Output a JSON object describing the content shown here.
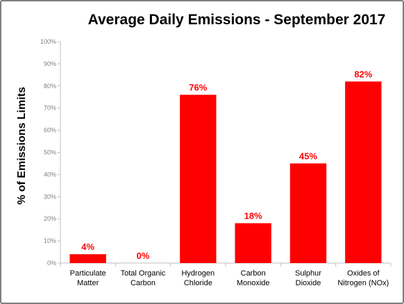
{
  "chart_data": {
    "type": "bar",
    "title": "Average Daily Emissions  - September 2017",
    "xlabel": "",
    "ylabel": "% of Emissions Limits",
    "categories": [
      [
        "Particulate",
        "Matter"
      ],
      [
        "Total Organic",
        "Carbon"
      ],
      [
        "Hydrogen",
        "Chloride"
      ],
      [
        "Carbon",
        "Monoxide"
      ],
      [
        "Sulphur",
        "Dioxide"
      ],
      [
        "Oxides of",
        "Nitrogen (NOx)"
      ]
    ],
    "values": [
      4,
      0,
      76,
      18,
      45,
      82
    ],
    "data_labels": [
      "4%",
      "0%",
      "76%",
      "18%",
      "45%",
      "82%"
    ],
    "ylim": [
      0,
      100
    ],
    "y_ticks": [
      "0%",
      "10%",
      "20%",
      "30%",
      "40%",
      "50%",
      "60%",
      "70%",
      "80%",
      "90%",
      "100%"
    ],
    "grid": false,
    "legend": "none",
    "colors": {
      "bar": "#ff0000",
      "data_label": "#ff0000",
      "axis": "#bfbfbf",
      "tick_text": "#7f7f7f",
      "border": "#7f7f7f"
    }
  }
}
